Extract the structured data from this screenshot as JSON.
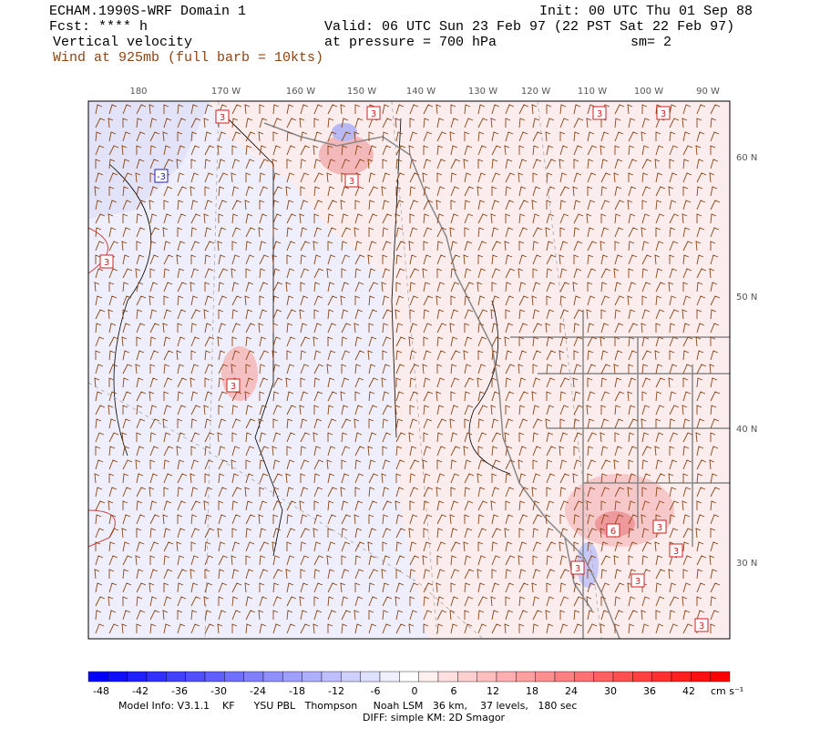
{
  "header": {
    "left": [
      "ECHAM.1990S-WRF Domain 1",
      "Fcst: **** h",
      "Vertical velocity",
      "Wind at 925mb (full barb = 10kts)"
    ],
    "right": [
      "Init: 00 UTC Thu 01 Sep 88",
      "Valid: 06 UTC Sun 23 Feb 97 (22 PST Sat 22 Feb 97)",
      "at pressure =  700 hPa",
      "sm= 2"
    ]
  },
  "map": {
    "lon_labels": [
      "180",
      "170 W",
      "160 W",
      "150 W",
      "140 W",
      "130 W",
      "120 W",
      "110 W",
      "100 W",
      "90 W"
    ],
    "lat_labels": [
      "60 N",
      "50 N",
      "40 N",
      "30 N"
    ],
    "contour_labels": [
      "3",
      "3",
      "3",
      "3",
      "-3",
      "3",
      "3",
      "3",
      "6",
      "3",
      "3",
      "3",
      "3",
      "3"
    ]
  },
  "colorbar": {
    "labels": [
      "-48",
      "-42",
      "-36",
      "-30",
      "-24",
      "-18",
      "-12",
      "-6",
      "0",
      "6",
      "12",
      "18",
      "24",
      "30",
      "36",
      "42"
    ],
    "unit": "cm s⁻¹"
  },
  "footer": [
    "Model Info: V3.1.1    KF      YSU PBL   Thompson     Noah LSM   36 km,    37 levels,   180 sec",
    "DIFF: simple KM: 2D Smagor"
  ]
}
